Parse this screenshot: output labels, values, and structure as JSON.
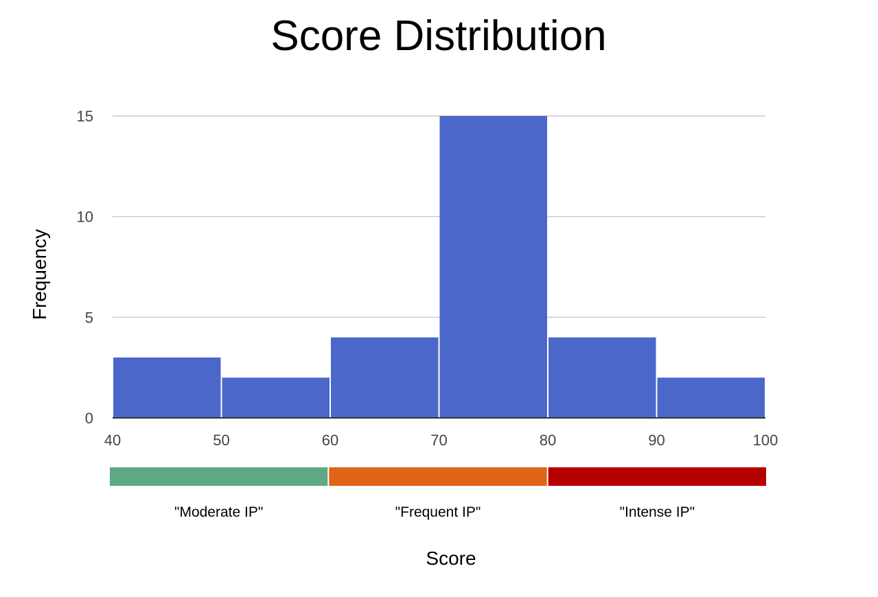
{
  "chart_data": {
    "type": "bar",
    "title": "Score Distribution",
    "xlabel": "Score",
    "ylabel": "Frequency",
    "bins": [
      {
        "from": 40,
        "to": 50,
        "value": 3
      },
      {
        "from": 50,
        "to": 60,
        "value": 2
      },
      {
        "from": 60,
        "to": 70,
        "value": 4
      },
      {
        "from": 70,
        "to": 80,
        "value": 15
      },
      {
        "from": 80,
        "to": 90,
        "value": 4
      },
      {
        "from": 90,
        "to": 100,
        "value": 2
      }
    ],
    "xlim": [
      40,
      100
    ],
    "ylim": [
      0,
      15
    ],
    "x_ticks": [
      "40",
      "50",
      "60",
      "70",
      "80",
      "90",
      "100"
    ],
    "y_ticks": [
      "0",
      "5",
      "10",
      "15"
    ],
    "grid": true,
    "bar_color": "#4A67C9",
    "bands": [
      {
        "label": "\"Moderate IP\"",
        "from": 40,
        "to": 60,
        "color": "#5EA886"
      },
      {
        "label": "\"Frequent IP\"",
        "from": 60,
        "to": 80,
        "color": "#E06516"
      },
      {
        "label": "\"Intense IP\"",
        "from": 80,
        "to": 100,
        "color": "#B50000"
      }
    ]
  }
}
